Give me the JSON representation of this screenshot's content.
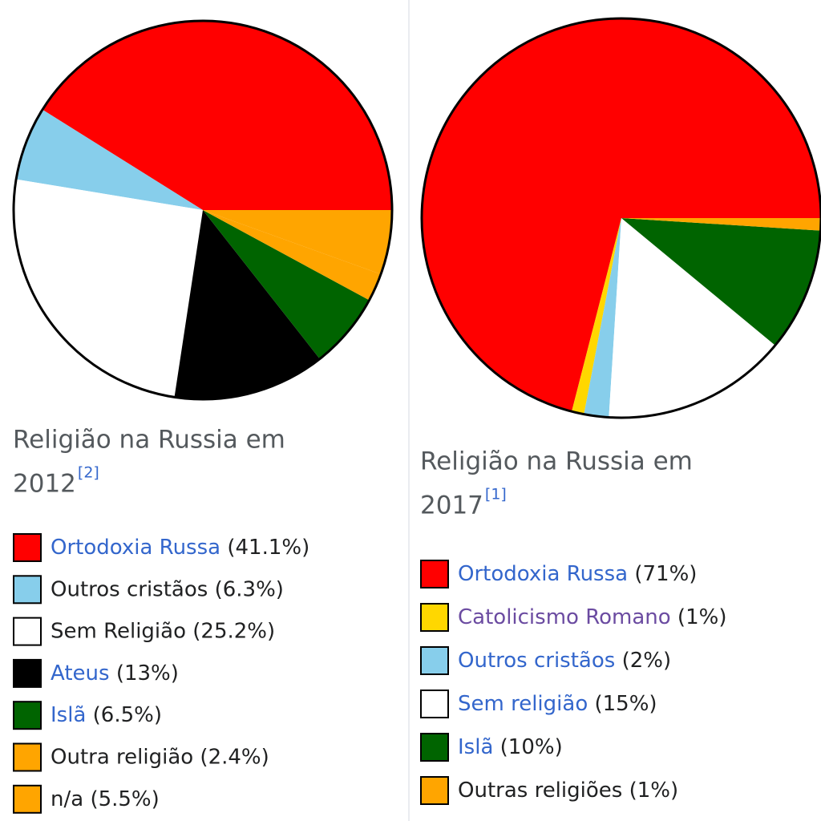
{
  "chart_data": [
    {
      "type": "pie",
      "title": "Religião na Russia em 2012",
      "reference": "[2]",
      "categories": [
        "Ortodoxia Russa",
        "Outros cristãos",
        "Sem Religião",
        "Ateus",
        "Islã",
        "Outra religião",
        "n/a"
      ],
      "values": [
        41.1,
        6.3,
        25.2,
        13,
        6.5,
        2.4,
        5.5
      ],
      "value_labels": [
        "(41.1%)",
        "(6.3%)",
        "(25.2%)",
        "(13%)",
        "(6.5%)",
        "(2.4%)",
        "(5.5%)"
      ],
      "colors": [
        "#ff0000",
        "#87ceeb",
        "#ffffff",
        "#000000",
        "#006400",
        "#ffa500",
        "#ffa500"
      ],
      "label_colors": [
        "#3366cc",
        "#202122",
        "#202122",
        "#3366cc",
        "#3366cc",
        "#202122",
        "#202122"
      ]
    },
    {
      "type": "pie",
      "title": "Religião na Russia em 2017",
      "reference": "[1]",
      "categories": [
        "Ortodoxia Russa",
        "Catolicismo Romano",
        "Outros cristãos",
        "Sem religião",
        "Islã",
        "Outras religiões"
      ],
      "values": [
        71,
        1,
        2,
        15,
        10,
        1
      ],
      "value_labels": [
        "(71%)",
        "(1%)",
        "(2%)",
        "(15%)",
        "(10%)",
        "(1%)"
      ],
      "colors": [
        "#ff0000",
        "#ffd700",
        "#87ceeb",
        "#ffffff",
        "#006400",
        "#ffa500"
      ],
      "label_colors": [
        "#3366cc",
        "#6b4ba1",
        "#3366cc",
        "#3366cc",
        "#3366cc",
        "#202122"
      ]
    }
  ]
}
